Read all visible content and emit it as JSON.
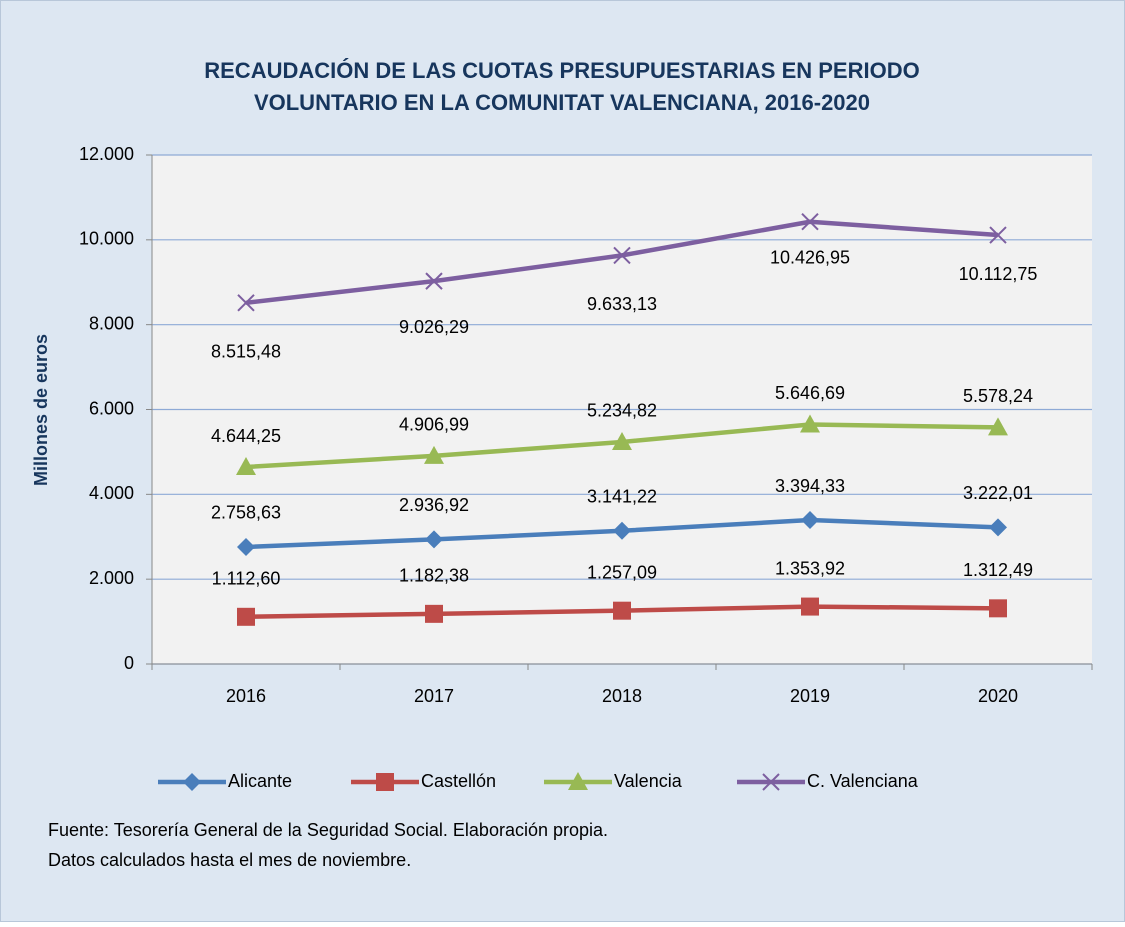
{
  "chart_data": {
    "type": "line",
    "title": [
      "RECAUDACIÓN DE LAS CUOTAS PRESUPUESTARIAS EN PERIODO",
      "VOLUNTARIO EN LA COMUNITAT VALENCIANA, 2016-2020"
    ],
    "y_label": "Millones de euros",
    "categories": [
      "2016",
      "2017",
      "2018",
      "2019",
      "2020"
    ],
    "series": [
      {
        "name": "Alicante",
        "color": "#4a7ebb",
        "marker": "diamond",
        "values": [
          2758.63,
          2936.92,
          3141.22,
          3394.33,
          3222.01
        ],
        "value_labels": [
          "2.758,63",
          "2.936,92",
          "3.141,22",
          "3.394,33",
          "3.222,01"
        ]
      },
      {
        "name": "Castellón",
        "color": "#be4b48",
        "marker": "square",
        "values": [
          1112.6,
          1182.38,
          1257.09,
          1353.92,
          1312.49
        ],
        "value_labels": [
          "1.112,60",
          "1.182,38",
          "1.257,09",
          "1.353,92",
          "1.312,49"
        ]
      },
      {
        "name": "Valencia",
        "color": "#98b954",
        "marker": "triangle",
        "values": [
          4644.25,
          4906.99,
          5234.82,
          5646.69,
          5578.24
        ],
        "value_labels": [
          "4.644,25",
          "4.906,99",
          "5.234,82",
          "5.646,69",
          "5.578,24"
        ]
      },
      {
        "name": "C. Valenciana",
        "color": "#7d5fa0",
        "marker": "x",
        "values": [
          8515.48,
          9026.29,
          9633.13,
          10426.95,
          10112.75
        ],
        "value_labels": [
          "8.515,48",
          "9.026,29",
          "9.633,13",
          "10.426,95",
          "10.112,75"
        ]
      }
    ],
    "ylim": [
      0,
      12000
    ],
    "yticks": [
      0,
      {
        "value": 2000,
        "label": "2.000"
      },
      {
        "value": 4000,
        "label": "4.000"
      },
      {
        "value": 6000,
        "label": "6.000"
      },
      {
        "value": 8000,
        "label": "8.000"
      },
      {
        "value": 10000,
        "label": "10.000"
      },
      {
        "value": 12000,
        "label": "12.000"
      }
    ],
    "grid": true,
    "legend": "bottom",
    "notes": [
      "Fuente: Tesorería General de la Seguridad Social. Elaboración propia.",
      "Datos calculados hasta el mes de noviembre."
    ]
  }
}
